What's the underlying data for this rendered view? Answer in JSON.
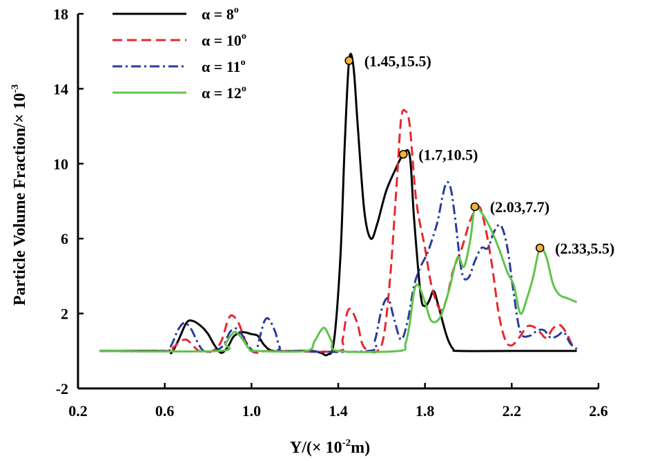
{
  "chart_data": {
    "type": "line",
    "title": "",
    "xlabel_main": "Y/(× 10",
    "xlabel_exp": "-2",
    "xlabel_tail": "m)",
    "ylabel_main": "Particle Volume Fraction/× 10",
    "ylabel_exp": "-3",
    "xlim": [
      0.2,
      2.6
    ],
    "ylim": [
      -2,
      18
    ],
    "xticks": [
      0.2,
      0.6,
      1.0,
      1.4,
      1.8,
      2.2,
      2.6
    ],
    "xtick_labels": [
      "0.2",
      "0.6",
      "1.0",
      "1.4",
      "1.8",
      "2.2",
      "2.6"
    ],
    "yticks": [
      -2,
      2,
      6,
      10,
      14,
      18
    ],
    "ytick_labels": [
      "-2",
      "2",
      "6",
      "10",
      "14",
      "18"
    ],
    "legend_position": "top-left",
    "series": [
      {
        "name": "α = 8",
        "name_exp": "o",
        "color": "#000000",
        "dash": "solid",
        "points": [
          [
            0.3,
            0
          ],
          [
            0.6,
            0
          ],
          [
            0.63,
            -0.1
          ],
          [
            0.66,
            0.5
          ],
          [
            0.7,
            1.5
          ],
          [
            0.73,
            1.6
          ],
          [
            0.77,
            1.3
          ],
          [
            0.8,
            0.9
          ],
          [
            0.83,
            0.3
          ],
          [
            0.86,
            -0.1
          ],
          [
            0.89,
            0.2
          ],
          [
            0.92,
            0.8
          ],
          [
            0.96,
            1.0
          ],
          [
            1.0,
            0.9
          ],
          [
            1.03,
            0.8
          ],
          [
            1.06,
            0.3
          ],
          [
            1.1,
            0
          ],
          [
            1.2,
            0
          ],
          [
            1.28,
            0
          ],
          [
            1.32,
            -0.1
          ],
          [
            1.35,
            -0.2
          ],
          [
            1.38,
            0.5
          ],
          [
            1.41,
            5.0
          ],
          [
            1.43,
            11.0
          ],
          [
            1.45,
            15.5
          ],
          [
            1.47,
            15.2
          ],
          [
            1.49,
            12.0
          ],
          [
            1.52,
            7.5
          ],
          [
            1.55,
            6.0
          ],
          [
            1.58,
            6.8
          ],
          [
            1.62,
            8.5
          ],
          [
            1.66,
            9.6
          ],
          [
            1.7,
            10.5
          ],
          [
            1.73,
            10.4
          ],
          [
            1.75,
            7.0
          ],
          [
            1.78,
            3.0
          ],
          [
            1.8,
            2.4
          ],
          [
            1.82,
            2.7
          ],
          [
            1.84,
            3.2
          ],
          [
            1.86,
            2.5
          ],
          [
            1.9,
            0.8
          ],
          [
            1.93,
            0.1
          ],
          [
            1.96,
            0
          ],
          [
            2.2,
            0
          ],
          [
            2.5,
            0
          ]
        ]
      },
      {
        "name": "α = 10",
        "name_exp": "o",
        "color": "#e8262e",
        "dash": "dashed",
        "points": [
          [
            0.3,
            0
          ],
          [
            0.6,
            0
          ],
          [
            0.64,
            0.2
          ],
          [
            0.67,
            0.5
          ],
          [
            0.7,
            0.6
          ],
          [
            0.73,
            0.3
          ],
          [
            0.76,
            0
          ],
          [
            0.82,
            0
          ],
          [
            0.86,
            0.5
          ],
          [
            0.89,
            1.6
          ],
          [
            0.91,
            1.9
          ],
          [
            0.94,
            1.5
          ],
          [
            0.97,
            0.6
          ],
          [
            1.0,
            0
          ],
          [
            1.04,
            -0.1
          ],
          [
            1.08,
            0
          ],
          [
            1.4,
            0
          ],
          [
            1.42,
            0.6
          ],
          [
            1.44,
            2.0
          ],
          [
            1.46,
            2.2
          ],
          [
            1.49,
            1.4
          ],
          [
            1.51,
            0.4
          ],
          [
            1.54,
            0
          ],
          [
            1.58,
            0
          ],
          [
            1.61,
            0.8
          ],
          [
            1.64,
            4.0
          ],
          [
            1.67,
            9.0
          ],
          [
            1.69,
            12.4
          ],
          [
            1.71,
            12.8
          ],
          [
            1.73,
            12.0
          ],
          [
            1.76,
            8.0
          ],
          [
            1.8,
            5.5
          ],
          [
            1.83,
            3.5
          ],
          [
            1.87,
            2.2
          ],
          [
            1.9,
            2.8
          ],
          [
            1.93,
            4.3
          ],
          [
            1.97,
            5.5
          ],
          [
            2.01,
            7.0
          ],
          [
            2.05,
            7.7
          ],
          [
            2.08,
            6.5
          ],
          [
            2.11,
            4.5
          ],
          [
            2.14,
            2.0
          ],
          [
            2.17,
            0.6
          ],
          [
            2.2,
            0.3
          ],
          [
            2.24,
            0.8
          ],
          [
            2.27,
            1.3
          ],
          [
            2.3,
            1.3
          ],
          [
            2.33,
            1.0
          ],
          [
            2.36,
            0.7
          ],
          [
            2.39,
            1.2
          ],
          [
            2.42,
            1.4
          ],
          [
            2.45,
            1.0
          ],
          [
            2.48,
            0.3
          ],
          [
            2.5,
            0.1
          ]
        ]
      },
      {
        "name": "α = 11",
        "name_exp": "o",
        "color": "#2a3b9c",
        "dash": "dashdot",
        "points": [
          [
            0.3,
            0
          ],
          [
            0.6,
            0
          ],
          [
            0.63,
            0.3
          ],
          [
            0.66,
            1.1
          ],
          [
            0.69,
            1.5
          ],
          [
            0.72,
            1.2
          ],
          [
            0.75,
            0.5
          ],
          [
            0.78,
            0
          ],
          [
            0.83,
            0
          ],
          [
            0.87,
            0.3
          ],
          [
            0.9,
            1.0
          ],
          [
            0.93,
            1.2
          ],
          [
            0.96,
            0.8
          ],
          [
            0.99,
            0.2
          ],
          [
            1.02,
            0
          ],
          [
            1.04,
            0.8
          ],
          [
            1.06,
            1.6
          ],
          [
            1.08,
            1.7
          ],
          [
            1.11,
            1.0
          ],
          [
            1.13,
            0.2
          ],
          [
            1.16,
            0
          ],
          [
            1.54,
            0
          ],
          [
            1.57,
            0.6
          ],
          [
            1.6,
            2.2
          ],
          [
            1.63,
            2.8
          ],
          [
            1.66,
            1.6
          ],
          [
            1.69,
            0.6
          ],
          [
            1.72,
            1.6
          ],
          [
            1.75,
            3.5
          ],
          [
            1.78,
            4.5
          ],
          [
            1.81,
            5.2
          ],
          [
            1.84,
            6.2
          ],
          [
            1.86,
            7.0
          ],
          [
            1.88,
            8.2
          ],
          [
            1.9,
            9.0
          ],
          [
            1.92,
            8.6
          ],
          [
            1.94,
            7.0
          ],
          [
            1.97,
            4.2
          ],
          [
            2.0,
            3.9
          ],
          [
            2.03,
            4.8
          ],
          [
            2.06,
            5.5
          ],
          [
            2.09,
            5.5
          ],
          [
            2.12,
            6.4
          ],
          [
            2.15,
            6.7
          ],
          [
            2.18,
            5.5
          ],
          [
            2.21,
            3.0
          ],
          [
            2.24,
            1.0
          ],
          [
            2.28,
            0.8
          ],
          [
            2.32,
            1.1
          ],
          [
            2.35,
            1.1
          ],
          [
            2.38,
            0.7
          ],
          [
            2.41,
            0.8
          ],
          [
            2.44,
            1.0
          ],
          [
            2.47,
            0.4
          ],
          [
            2.5,
            0.1
          ]
        ]
      },
      {
        "name": "α = 12",
        "name_exp": "o",
        "color": "#5ec44a",
        "dash": "solid",
        "points": [
          [
            0.3,
            0
          ],
          [
            0.85,
            0
          ],
          [
            0.88,
            0.4
          ],
          [
            0.91,
            0.9
          ],
          [
            0.93,
            1.0
          ],
          [
            0.96,
            0.6
          ],
          [
            0.99,
            0.1
          ],
          [
            1.02,
            0
          ],
          [
            1.25,
            0
          ],
          [
            1.29,
            0.5
          ],
          [
            1.32,
            1.1
          ],
          [
            1.34,
            1.2
          ],
          [
            1.37,
            0.5
          ],
          [
            1.4,
            0
          ],
          [
            1.68,
            0
          ],
          [
            1.71,
            0.4
          ],
          [
            1.73,
            1.5
          ],
          [
            1.75,
            3.2
          ],
          [
            1.77,
            3.5
          ],
          [
            1.8,
            2.6
          ],
          [
            1.83,
            1.6
          ],
          [
            1.87,
            1.8
          ],
          [
            1.91,
            3.2
          ],
          [
            1.95,
            5.0
          ],
          [
            1.98,
            4.5
          ],
          [
            2.01,
            6.0
          ],
          [
            2.03,
            7.7
          ],
          [
            2.06,
            7.4
          ],
          [
            2.1,
            6.6
          ],
          [
            2.14,
            5.5
          ],
          [
            2.18,
            4.2
          ],
          [
            2.21,
            3.5
          ],
          [
            2.24,
            2.0
          ],
          [
            2.27,
            2.8
          ],
          [
            2.3,
            4.0
          ],
          [
            2.33,
            5.5
          ],
          [
            2.36,
            5.0
          ],
          [
            2.39,
            3.6
          ],
          [
            2.42,
            3.0
          ],
          [
            2.46,
            2.8
          ],
          [
            2.5,
            2.6
          ]
        ]
      }
    ],
    "annotations": [
      {
        "label": "(1.45,15.5)",
        "x": 1.45,
        "y": 15.5,
        "text_pos": "right"
      },
      {
        "label": "(1.7,10.5)",
        "x": 1.7,
        "y": 10.5,
        "text_pos": "right"
      },
      {
        "label": "(2.03,7.7)",
        "x": 2.03,
        "y": 7.7,
        "text_pos": "right"
      },
      {
        "label": "(2.33,5.5)",
        "x": 2.33,
        "y": 5.5,
        "text_pos": "right"
      }
    ],
    "marker_color": "#f5b335"
  }
}
